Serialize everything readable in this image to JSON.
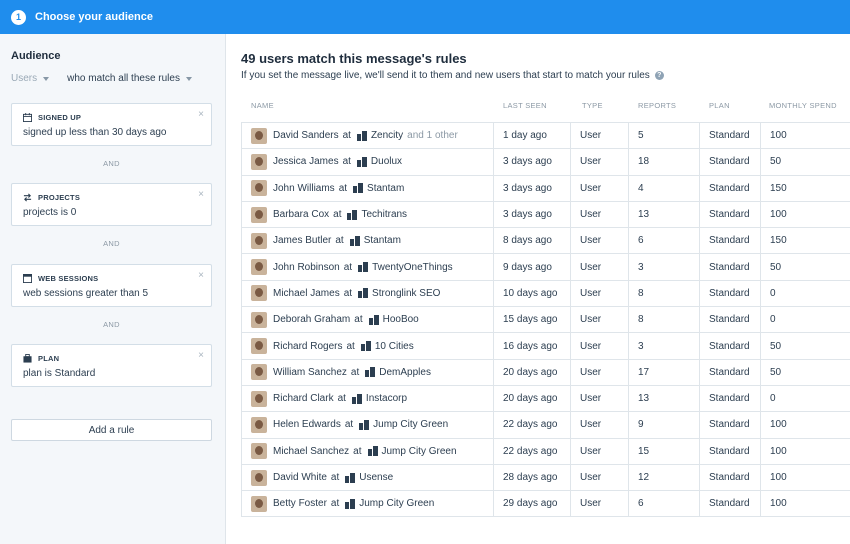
{
  "header": {
    "step_number": "1",
    "title": "Choose your audience"
  },
  "sidebar": {
    "title": "Audience",
    "scope_users": "Users",
    "scope_match": "who match all these rules",
    "rules": [
      {
        "label": "SIGNED UP",
        "icon": "calendar-icon",
        "text": "signed up less than 30 days ago"
      },
      {
        "label": "PROJECTS",
        "icon": "swap-icon",
        "text": "projects is 0"
      },
      {
        "label": "WEB SESSIONS",
        "icon": "browser-icon",
        "text": "web sessions greater than 5"
      },
      {
        "label": "PLAN",
        "icon": "briefcase-icon",
        "text": "plan is Standard"
      }
    ],
    "and_label": "AND",
    "add_rule": "Add a rule"
  },
  "main": {
    "title": "49 users match this message's rules",
    "subtitle": "If you set the message live, we'll send it to them and new users that start to match your rules",
    "columns": [
      "NAME",
      "LAST SEEN",
      "TYPE",
      "REPORTS",
      "PLAN",
      "MONTHLY SPEND"
    ],
    "at_word": "at",
    "rows": [
      {
        "name": "David Sanders",
        "company": "Zencity",
        "extra": "and 1 other",
        "last_seen": "1 day ago",
        "type": "User",
        "reports": "5",
        "plan": "Standard",
        "spend": "100"
      },
      {
        "name": "Jessica James",
        "company": "Duolux",
        "extra": "",
        "last_seen": "3 days ago",
        "type": "User",
        "reports": "18",
        "plan": "Standard",
        "spend": "50"
      },
      {
        "name": "John Williams",
        "company": "Stantam",
        "extra": "",
        "last_seen": "3 days ago",
        "type": "User",
        "reports": "4",
        "plan": "Standard",
        "spend": "150"
      },
      {
        "name": "Barbara Cox",
        "company": "Techitrans",
        "extra": "",
        "last_seen": "3 days ago",
        "type": "User",
        "reports": "13",
        "plan": "Standard",
        "spend": "100"
      },
      {
        "name": "James Butler",
        "company": "Stantam",
        "extra": "",
        "last_seen": "8 days ago",
        "type": "User",
        "reports": "6",
        "plan": "Standard",
        "spend": "150"
      },
      {
        "name": "John Robinson",
        "company": "TwentyOneThings",
        "extra": "",
        "last_seen": "9 days ago",
        "type": "User",
        "reports": "3",
        "plan": "Standard",
        "spend": "50"
      },
      {
        "name": "Michael James",
        "company": "Stronglink SEO",
        "extra": "",
        "last_seen": "10 days ago",
        "type": "User",
        "reports": "8",
        "plan": "Standard",
        "spend": "0"
      },
      {
        "name": "Deborah Graham",
        "company": "HooBoo",
        "extra": "",
        "last_seen": "15 days ago",
        "type": "User",
        "reports": "8",
        "plan": "Standard",
        "spend": "0"
      },
      {
        "name": "Richard Rogers",
        "company": "10 Cities",
        "extra": "",
        "last_seen": "16 days ago",
        "type": "User",
        "reports": "3",
        "plan": "Standard",
        "spend": "50"
      },
      {
        "name": "William Sanchez",
        "company": "DemApples",
        "extra": "",
        "last_seen": "20 days ago",
        "type": "User",
        "reports": "17",
        "plan": "Standard",
        "spend": "50"
      },
      {
        "name": "Richard Clark",
        "company": "Instacorp",
        "extra": "",
        "last_seen": "20 days ago",
        "type": "User",
        "reports": "13",
        "plan": "Standard",
        "spend": "0"
      },
      {
        "name": "Helen Edwards",
        "company": "Jump City Green",
        "extra": "",
        "last_seen": "22 days ago",
        "type": "User",
        "reports": "9",
        "plan": "Standard",
        "spend": "100"
      },
      {
        "name": "Michael Sanchez",
        "company": "Jump City Green",
        "extra": "",
        "last_seen": "22 days ago",
        "type": "User",
        "reports": "15",
        "plan": "Standard",
        "spend": "100"
      },
      {
        "name": "David White",
        "company": "Usense",
        "extra": "",
        "last_seen": "28 days ago",
        "type": "User",
        "reports": "12",
        "plan": "Standard",
        "spend": "100"
      },
      {
        "name": "Betty Foster",
        "company": "Jump City Green",
        "extra": "",
        "last_seen": "29 days ago",
        "type": "User",
        "reports": "6",
        "plan": "Standard",
        "spend": "100"
      }
    ]
  },
  "colors": {
    "accent": "#1f8ded",
    "sidebar_bg": "#f4f7fa",
    "border": "#dfe5ea"
  }
}
